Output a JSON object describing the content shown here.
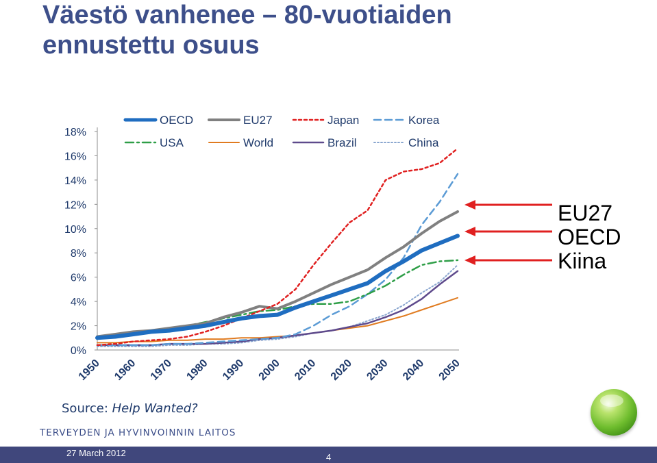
{
  "title": {
    "line1": "Väestö vanhenee – 80-vuotiaiden",
    "line2": "ennustettu osuus"
  },
  "arrow_labels": [
    "EU27",
    "OECD",
    "Kiina"
  ],
  "arrow_color": "#e02020",
  "source": {
    "prefix": "Source: ",
    "title": "Help Wanted?"
  },
  "organization": "TERVEYDEN JA HYVINVOINNIN LAITOS",
  "footer": {
    "date": "27 March 2012",
    "page": "4"
  },
  "chart_data": {
    "type": "line",
    "x": [
      1950,
      1955,
      1960,
      1965,
      1970,
      1975,
      1980,
      1985,
      1990,
      1995,
      2000,
      2005,
      2010,
      2015,
      2020,
      2025,
      2030,
      2035,
      2040,
      2045,
      2050
    ],
    "x_tick_labels": [
      "1950",
      "1960",
      "1970",
      "1980",
      "1990",
      "2000",
      "2010",
      "2020",
      "2030",
      "2040",
      "2050"
    ],
    "y_tick_labels": [
      "0%",
      "2%",
      "4%",
      "6%",
      "8%",
      "10%",
      "12%",
      "14%",
      "16%",
      "18%"
    ],
    "ylim": [
      0,
      18
    ],
    "y_unit": "%",
    "series": [
      {
        "name": "OECD",
        "color": "#1f6dc0",
        "dash": "solid",
        "width": 6,
        "values": [
          1.0,
          1.1,
          1.3,
          1.5,
          1.6,
          1.8,
          2.0,
          2.3,
          2.6,
          2.8,
          2.9,
          3.5,
          4.0,
          4.5,
          5.0,
          5.5,
          6.5,
          7.3,
          8.2,
          8.8,
          9.4
        ]
      },
      {
        "name": "EU27",
        "color": "#808080",
        "dash": "solid",
        "width": 4,
        "values": [
          1.1,
          1.3,
          1.5,
          1.6,
          1.8,
          2.0,
          2.2,
          2.7,
          3.1,
          3.6,
          3.4,
          4.0,
          4.7,
          5.4,
          6.0,
          6.6,
          7.6,
          8.5,
          9.6,
          10.6,
          11.4
        ]
      },
      {
        "name": "Japan",
        "color": "#e02020",
        "dash": "dot",
        "width": 2.5,
        "values": [
          0.4,
          0.5,
          0.7,
          0.8,
          0.9,
          1.1,
          1.5,
          2.0,
          2.6,
          3.2,
          3.8,
          5.0,
          7.0,
          8.8,
          10.5,
          11.5,
          14.0,
          14.7,
          14.9,
          15.4,
          16.6
        ]
      },
      {
        "name": "Korea",
        "color": "#5b9bd5",
        "dash": "dash",
        "width": 2.5,
        "values": [
          0.4,
          0.4,
          0.4,
          0.4,
          0.5,
          0.5,
          0.6,
          0.7,
          0.8,
          0.9,
          1.0,
          1.3,
          2.0,
          2.9,
          3.6,
          4.6,
          5.8,
          7.6,
          10.3,
          12.2,
          14.5
        ]
      },
      {
        "name": "USA",
        "color": "#2e9e47",
        "dash": "dashdot",
        "width": 2.5,
        "values": [
          1.1,
          1.2,
          1.4,
          1.6,
          1.8,
          2.0,
          2.3,
          2.6,
          2.9,
          3.2,
          3.3,
          3.6,
          3.8,
          3.8,
          4.0,
          4.6,
          5.3,
          6.2,
          7.0,
          7.3,
          7.4
        ]
      },
      {
        "name": "World",
        "color": "#e07b20",
        "dash": "solid",
        "width": 2,
        "values": [
          0.6,
          0.6,
          0.7,
          0.7,
          0.8,
          0.8,
          0.9,
          0.9,
          1.0,
          1.0,
          1.1,
          1.2,
          1.4,
          1.6,
          1.8,
          2.0,
          2.4,
          2.8,
          3.3,
          3.8,
          4.3
        ]
      },
      {
        "name": "Brazil",
        "color": "#5e4a8c",
        "dash": "solid",
        "width": 2.5,
        "values": [
          0.4,
          0.4,
          0.4,
          0.4,
          0.5,
          0.5,
          0.5,
          0.6,
          0.7,
          0.9,
          1.0,
          1.2,
          1.4,
          1.6,
          1.9,
          2.2,
          2.7,
          3.3,
          4.2,
          5.4,
          6.5
        ]
      },
      {
        "name": "China",
        "color": "#8aa6cf",
        "dash": "dotted",
        "width": 2,
        "values": [
          0.3,
          0.3,
          0.3,
          0.3,
          0.4,
          0.4,
          0.5,
          0.5,
          0.6,
          0.8,
          0.9,
          1.1,
          1.4,
          1.6,
          1.9,
          2.4,
          2.9,
          3.7,
          4.7,
          5.6,
          7.0
        ]
      }
    ],
    "legend_placement": "top"
  }
}
